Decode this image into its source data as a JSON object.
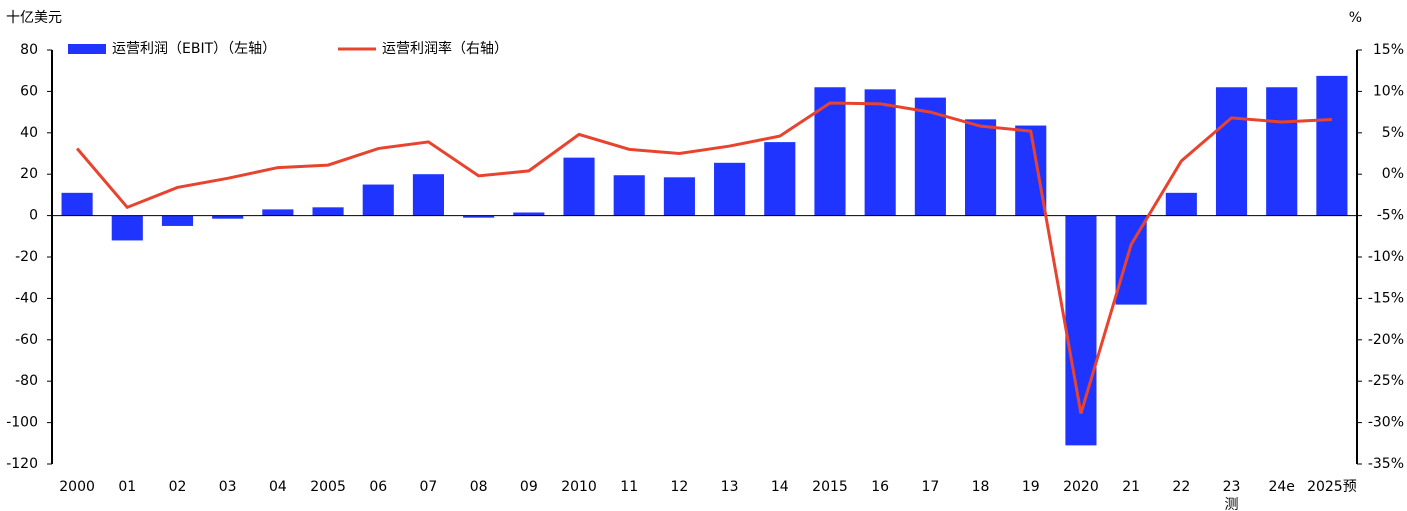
{
  "chart_data": {
    "type": "bar_line",
    "y_label": "十亿美元",
    "y2_label": "%",
    "categories": [
      "2000",
      "01",
      "02",
      "03",
      "04",
      "2005",
      "06",
      "07",
      "08",
      "09",
      "2010",
      "11",
      "12",
      "13",
      "14",
      "2015",
      "16",
      "17",
      "18",
      "19",
      "2020",
      "21",
      "22",
      "23",
      "24e",
      "2025预"
    ],
    "annotations": [
      "测"
    ],
    "series": [
      {
        "name": "运营利润（EBIT）（左轴）",
        "type": "bar",
        "color": "#1f35ff",
        "values": [
          11,
          -12,
          -5,
          -1.5,
          3,
          4,
          15,
          20,
          -1,
          1.5,
          28,
          19.5,
          18.5,
          25.5,
          35.5,
          62,
          61,
          57,
          46.5,
          43.5,
          -111,
          -43,
          11,
          62,
          62,
          67.5
        ]
      },
      {
        "name": "运营利润率（右轴）",
        "type": "line",
        "axis": "y2",
        "color": "#e8432e",
        "values": [
          3.1,
          -4.0,
          -1.6,
          -0.5,
          0.8,
          1.1,
          3.1,
          3.9,
          -0.2,
          0.4,
          4.8,
          3.0,
          2.5,
          3.4,
          4.6,
          8.6,
          8.5,
          7.5,
          5.8,
          5.2,
          -28.9,
          -8.5,
          1.6,
          6.8,
          6.3,
          6.6
        ]
      }
    ],
    "ylim": [
      -120,
      80
    ],
    "yticks": [
      -120,
      -100,
      -80,
      -60,
      -40,
      -20,
      0,
      20,
      40,
      60,
      80
    ],
    "y2lim": [
      -35,
      15
    ],
    "y2ticks": [
      {
        "value": -35,
        "label": "-35%"
      },
      {
        "value": -30,
        "label": "-30%"
      },
      {
        "value": -25,
        "label": "-25%"
      },
      {
        "value": -20,
        "label": "-20%"
      },
      {
        "value": -15,
        "label": "-15%"
      },
      {
        "value": -10,
        "label": "-10%"
      },
      {
        "value": -5,
        "label": "-5%"
      },
      {
        "value": 0,
        "label": "0%"
      },
      {
        "value": 5,
        "label": "5%"
      },
      {
        "value": 10,
        "label": "10%"
      },
      {
        "value": 15,
        "label": "15%"
      }
    ],
    "grid": false
  }
}
